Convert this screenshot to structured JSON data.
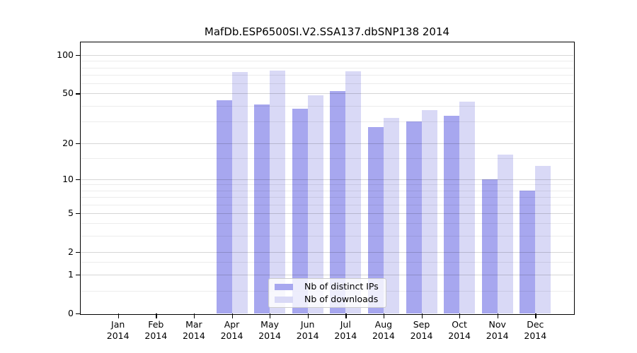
{
  "chart_data": {
    "type": "bar",
    "title": "MafDb.ESP6500SI.V2.SSA137.dbSNP138 2014",
    "categories": [
      "Jan",
      "Feb",
      "Mar",
      "Apr",
      "May",
      "Jun",
      "Jul",
      "Aug",
      "Sep",
      "Oct",
      "Nov",
      "Dec"
    ],
    "x_year_label": "2014",
    "series": [
      {
        "name": "Nb of distinct IPs",
        "color": "#a7a7ef",
        "values": [
          0,
          0,
          0,
          44,
          41,
          38,
          52,
          27,
          30,
          33,
          10,
          8
        ]
      },
      {
        "name": "Nb of downloads",
        "color": "#d9d9f6",
        "values": [
          0,
          0,
          0,
          74,
          76,
          48,
          75,
          32,
          37,
          43,
          16,
          13
        ]
      }
    ],
    "yscale": "log1p",
    "ylim": [
      0,
      126
    ],
    "y_major_ticks": [
      0,
      1,
      2,
      5,
      10,
      20,
      50,
      100
    ],
    "y_minor_gridlines": [
      0.5,
      1.5,
      3,
      4,
      6,
      7,
      8,
      9,
      15,
      30,
      40,
      60,
      70,
      80,
      90
    ],
    "grid": true,
    "legend_position": "lower center",
    "axis_color": "#000000",
    "background_color": "#ffffff"
  }
}
